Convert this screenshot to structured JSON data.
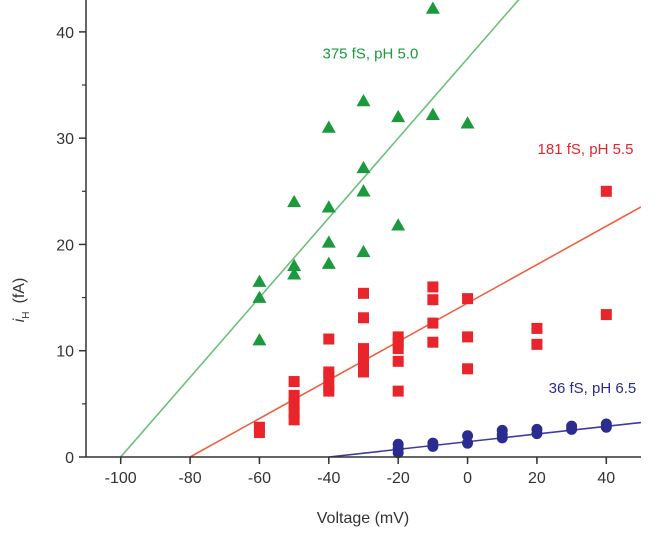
{
  "chart_data": {
    "type": "scatter",
    "xlabel": "Voltage (mV)",
    "ylabel_main": "i",
    "ylabel_sub": "H",
    "ylabel_unit": "(fA)",
    "xlim": [
      -110,
      50
    ],
    "ylim": [
      0,
      43
    ],
    "xticks": [
      -100,
      -80,
      -60,
      -40,
      -20,
      0,
      20,
      40
    ],
    "yticks": [
      0,
      10,
      20,
      30,
      40
    ],
    "grid": false,
    "series": [
      {
        "name": "375 fS, pH 5.0",
        "marker": "triangle",
        "color": "#1a9a3c",
        "line_color": "#6cc07a",
        "fit": {
          "x0": -100,
          "slope": 0.375
        },
        "points": [
          [
            -60,
            16.5
          ],
          [
            -60,
            15.0
          ],
          [
            -60,
            11.0
          ],
          [
            -50,
            24.0
          ],
          [
            -50,
            18.0
          ],
          [
            -50,
            17.2
          ],
          [
            -40,
            31.0
          ],
          [
            -40,
            23.5
          ],
          [
            -40,
            20.2
          ],
          [
            -40,
            18.2
          ],
          [
            -30,
            33.5
          ],
          [
            -30,
            27.2
          ],
          [
            -30,
            25.0
          ],
          [
            -30,
            19.3
          ],
          [
            -20,
            32.0
          ],
          [
            -20,
            21.8
          ],
          [
            -10,
            42.2
          ],
          [
            -10,
            32.2
          ],
          [
            0,
            31.4
          ]
        ]
      },
      {
        "name": "181 fS, pH 5.5",
        "marker": "square",
        "color": "#e8252b",
        "line_color": "#f06040",
        "fit": {
          "x0": -80,
          "slope": 0.181
        },
        "points": [
          [
            -60,
            2.8
          ],
          [
            -60,
            2.3
          ],
          [
            -50,
            7.1
          ],
          [
            -50,
            5.8
          ],
          [
            -50,
            5.0
          ],
          [
            -50,
            4.2
          ],
          [
            -50,
            3.5
          ],
          [
            -40,
            11.1
          ],
          [
            -40,
            8.0
          ],
          [
            -40,
            7.6
          ],
          [
            -40,
            6.6
          ],
          [
            -40,
            6.2
          ],
          [
            -30,
            15.4
          ],
          [
            -30,
            13.1
          ],
          [
            -30,
            10.2
          ],
          [
            -30,
            9.6
          ],
          [
            -30,
            9.0
          ],
          [
            -30,
            8.0
          ],
          [
            -20,
            11.3
          ],
          [
            -20,
            10.8
          ],
          [
            -20,
            10.2
          ],
          [
            -20,
            9.0
          ],
          [
            -20,
            6.2
          ],
          [
            -10,
            16.0
          ],
          [
            -10,
            14.8
          ],
          [
            -10,
            12.6
          ],
          [
            -10,
            10.8
          ],
          [
            0,
            14.9
          ],
          [
            0,
            11.3
          ],
          [
            0,
            8.3
          ],
          [
            20,
            12.1
          ],
          [
            20,
            10.6
          ],
          [
            40,
            25.0
          ],
          [
            40,
            13.4
          ]
        ]
      },
      {
        "name": "36 fS, pH 6.5",
        "marker": "circle",
        "color": "#2a2d8f",
        "line_color": "#3a3aa0",
        "fit": {
          "x0": -40,
          "slope": 0.036
        },
        "points": [
          [
            -20,
            1.2
          ],
          [
            -20,
            0.8
          ],
          [
            -20,
            0.4
          ],
          [
            -10,
            1.3
          ],
          [
            -10,
            1.0
          ],
          [
            0,
            2.0
          ],
          [
            0,
            1.3
          ],
          [
            10,
            2.5
          ],
          [
            10,
            2.1
          ],
          [
            10,
            1.8
          ],
          [
            20,
            2.6
          ],
          [
            20,
            2.2
          ],
          [
            30,
            2.9
          ],
          [
            30,
            2.6
          ],
          [
            40,
            3.1
          ],
          [
            40,
            2.8
          ]
        ]
      }
    ]
  }
}
